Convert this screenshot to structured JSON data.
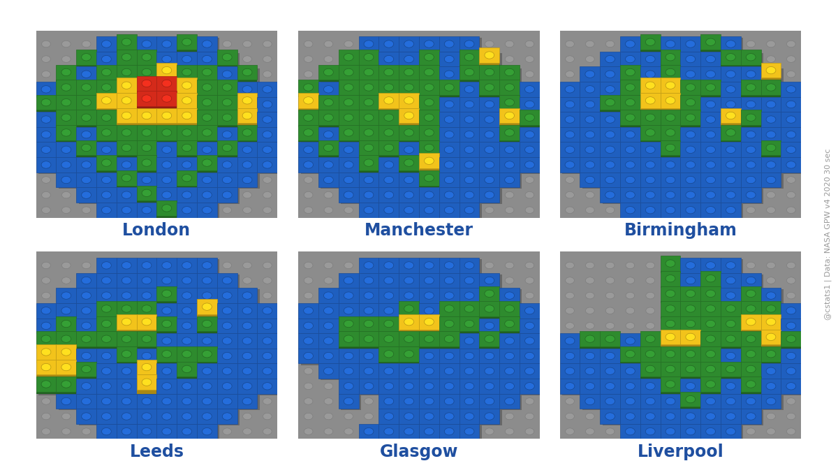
{
  "chart_data": [
    {
      "type": "heatmap",
      "title": "London",
      "tick_labels": false,
      "colors": [
        "#1f5fbf",
        "#2e8b2e",
        "#f2c31b",
        "#d42a1a"
      ],
      "cells": [
        [
          null,
          null,
          null,
          0,
          1,
          0,
          0,
          1,
          0,
          null,
          null,
          null
        ],
        [
          null,
          null,
          1,
          0,
          1,
          1,
          0,
          0,
          0,
          1,
          null,
          null
        ],
        [
          null,
          1,
          0,
          1,
          1,
          1,
          2,
          1,
          1,
          0,
          1,
          null
        ],
        [
          0,
          1,
          1,
          1,
          2,
          3,
          3,
          2,
          1,
          1,
          0,
          0
        ],
        [
          1,
          1,
          1,
          2,
          2,
          3,
          3,
          2,
          1,
          1,
          2,
          0
        ],
        [
          0,
          1,
          1,
          1,
          2,
          2,
          2,
          2,
          1,
          1,
          2,
          0
        ],
        [
          0,
          1,
          0,
          1,
          1,
          1,
          1,
          1,
          1,
          0,
          1,
          0
        ],
        [
          0,
          0,
          1,
          0,
          1,
          1,
          0,
          1,
          0,
          1,
          0,
          0
        ],
        [
          0,
          0,
          0,
          1,
          0,
          1,
          0,
          0,
          1,
          0,
          0,
          0
        ],
        [
          null,
          0,
          0,
          0,
          1,
          0,
          0,
          1,
          0,
          0,
          0,
          null
        ],
        [
          null,
          null,
          0,
          0,
          0,
          1,
          0,
          0,
          0,
          0,
          null,
          null
        ],
        [
          null,
          null,
          null,
          0,
          0,
          0,
          1,
          0,
          0,
          null,
          null,
          null
        ]
      ]
    },
    {
      "type": "heatmap",
      "title": "Manchester",
      "tick_labels": false,
      "colors": [
        "#1f5fbf",
        "#2e8b2e",
        "#f2c31b",
        "#d42a1a"
      ],
      "cells": [
        [
          null,
          null,
          null,
          0,
          0,
          0,
          0,
          0,
          0,
          null,
          null,
          null
        ],
        [
          null,
          null,
          1,
          1,
          0,
          0,
          1,
          0,
          1,
          2,
          null,
          null
        ],
        [
          null,
          1,
          1,
          1,
          1,
          1,
          1,
          0,
          1,
          1,
          1,
          null
        ],
        [
          1,
          0,
          1,
          1,
          1,
          1,
          1,
          1,
          0,
          1,
          1,
          0
        ],
        [
          2,
          1,
          1,
          1,
          2,
          2,
          1,
          0,
          0,
          0,
          1,
          0
        ],
        [
          1,
          1,
          1,
          1,
          1,
          2,
          1,
          0,
          0,
          0,
          2,
          1
        ],
        [
          1,
          0,
          1,
          1,
          1,
          1,
          1,
          0,
          0,
          0,
          1,
          0
        ],
        [
          0,
          1,
          0,
          1,
          1,
          0,
          1,
          0,
          0,
          0,
          0,
          0
        ],
        [
          0,
          0,
          0,
          1,
          0,
          1,
          2,
          0,
          0,
          0,
          0,
          0
        ],
        [
          null,
          0,
          0,
          0,
          0,
          0,
          1,
          0,
          0,
          0,
          0,
          null
        ],
        [
          null,
          null,
          0,
          0,
          0,
          0,
          0,
          0,
          0,
          0,
          null,
          null
        ],
        [
          null,
          null,
          null,
          0,
          0,
          0,
          0,
          0,
          0,
          null,
          null,
          null
        ]
      ]
    },
    {
      "type": "heatmap",
      "title": "Birmingham",
      "tick_labels": false,
      "colors": [
        "#1f5fbf",
        "#2e8b2e",
        "#f2c31b",
        "#d42a1a"
      ],
      "cells": [
        [
          null,
          null,
          null,
          0,
          1,
          0,
          0,
          1,
          0,
          null,
          null,
          null
        ],
        [
          null,
          null,
          0,
          0,
          0,
          1,
          0,
          0,
          1,
          1,
          null,
          null
        ],
        [
          null,
          0,
          0,
          1,
          0,
          1,
          0,
          0,
          0,
          0,
          2,
          null
        ],
        [
          0,
          0,
          0,
          1,
          2,
          2,
          1,
          1,
          0,
          1,
          1,
          0
        ],
        [
          0,
          0,
          1,
          1,
          2,
          2,
          1,
          0,
          0,
          0,
          0,
          0
        ],
        [
          0,
          0,
          0,
          1,
          1,
          1,
          1,
          0,
          2,
          1,
          0,
          0
        ],
        [
          0,
          0,
          0,
          0,
          1,
          1,
          0,
          0,
          1,
          0,
          0,
          0
        ],
        [
          0,
          0,
          0,
          0,
          0,
          1,
          0,
          0,
          0,
          0,
          1,
          0
        ],
        [
          0,
          0,
          0,
          0,
          0,
          0,
          0,
          0,
          0,
          0,
          0,
          0
        ],
        [
          null,
          0,
          0,
          0,
          0,
          0,
          0,
          0,
          0,
          0,
          0,
          null
        ],
        [
          null,
          null,
          0,
          0,
          0,
          0,
          0,
          0,
          0,
          0,
          null,
          null
        ],
        [
          null,
          null,
          null,
          0,
          0,
          0,
          0,
          0,
          0,
          null,
          null,
          null
        ]
      ]
    },
    {
      "type": "heatmap",
      "title": "Leeds",
      "tick_labels": false,
      "colors": [
        "#1f5fbf",
        "#2e8b2e",
        "#f2c31b",
        "#d42a1a"
      ],
      "cells": [
        [
          null,
          null,
          null,
          0,
          0,
          0,
          0,
          0,
          0,
          null,
          null,
          null
        ],
        [
          null,
          null,
          0,
          0,
          0,
          0,
          0,
          0,
          0,
          0,
          null,
          null
        ],
        [
          null,
          0,
          0,
          0,
          0,
          0,
          1,
          0,
          0,
          0,
          0,
          null
        ],
        [
          0,
          0,
          0,
          1,
          1,
          1,
          0,
          0,
          2,
          0,
          0,
          0
        ],
        [
          0,
          1,
          0,
          1,
          2,
          2,
          1,
          0,
          1,
          0,
          0,
          0
        ],
        [
          1,
          1,
          1,
          1,
          1,
          1,
          0,
          0,
          0,
          0,
          0,
          0
        ],
        [
          2,
          2,
          0,
          0,
          1,
          0,
          1,
          1,
          1,
          0,
          0,
          0
        ],
        [
          2,
          2,
          1,
          0,
          0,
          2,
          0,
          1,
          0,
          0,
          0,
          0
        ],
        [
          1,
          1,
          0,
          0,
          0,
          2,
          0,
          0,
          0,
          0,
          0,
          0
        ],
        [
          null,
          0,
          0,
          0,
          0,
          0,
          0,
          0,
          0,
          0,
          0,
          null
        ],
        [
          null,
          null,
          0,
          0,
          0,
          0,
          0,
          0,
          0,
          0,
          null,
          null
        ],
        [
          null,
          null,
          null,
          0,
          0,
          0,
          0,
          0,
          0,
          null,
          null,
          null
        ]
      ]
    },
    {
      "type": "heatmap",
      "title": "Glasgow",
      "tick_labels": false,
      "colors": [
        "#1f5fbf",
        "#2e8b2e",
        "#f2c31b",
        "#d42a1a"
      ],
      "cells": [
        [
          null,
          null,
          null,
          0,
          0,
          0,
          0,
          0,
          0,
          null,
          null,
          null
        ],
        [
          null,
          null,
          0,
          0,
          0,
          0,
          0,
          0,
          0,
          0,
          null,
          null
        ],
        [
          null,
          0,
          0,
          0,
          0,
          0,
          0,
          0,
          0,
          1,
          0,
          null
        ],
        [
          0,
          0,
          0,
          0,
          0,
          1,
          0,
          1,
          1,
          1,
          1,
          0
        ],
        [
          0,
          0,
          1,
          1,
          1,
          2,
          2,
          1,
          1,
          0,
          1,
          0
        ],
        [
          0,
          0,
          1,
          1,
          1,
          1,
          1,
          1,
          0,
          1,
          0,
          0
        ],
        [
          0,
          0,
          0,
          0,
          1,
          1,
          0,
          0,
          0,
          0,
          0,
          0
        ],
        [
          null,
          0,
          0,
          0,
          0,
          0,
          0,
          0,
          0,
          0,
          0,
          0
        ],
        [
          null,
          null,
          0,
          0,
          0,
          0,
          0,
          0,
          0,
          0,
          0,
          0
        ],
        [
          null,
          null,
          0,
          null,
          0,
          0,
          0,
          0,
          0,
          0,
          0,
          null
        ],
        [
          null,
          null,
          null,
          null,
          0,
          0,
          0,
          0,
          0,
          0,
          null,
          null
        ],
        [
          null,
          null,
          null,
          0,
          0,
          0,
          0,
          0,
          0,
          null,
          null,
          null
        ]
      ]
    },
    {
      "type": "heatmap",
      "title": "Liverpool",
      "tick_labels": false,
      "colors": [
        "#1f5fbf",
        "#2e8b2e",
        "#f2c31b",
        "#d42a1a"
      ],
      "cells": [
        [
          null,
          null,
          null,
          null,
          null,
          1,
          0,
          0,
          0,
          null,
          null,
          null
        ],
        [
          null,
          null,
          null,
          null,
          null,
          1,
          0,
          1,
          0,
          0,
          null,
          null
        ],
        [
          null,
          null,
          null,
          null,
          null,
          1,
          1,
          1,
          0,
          1,
          0,
          null
        ],
        [
          null,
          null,
          null,
          null,
          null,
          1,
          1,
          1,
          1,
          1,
          1,
          0
        ],
        [
          null,
          null,
          null,
          null,
          null,
          1,
          1,
          1,
          1,
          2,
          2,
          0
        ],
        [
          0,
          1,
          1,
          0,
          1,
          2,
          2,
          1,
          1,
          1,
          2,
          1
        ],
        [
          0,
          0,
          0,
          1,
          1,
          1,
          1,
          1,
          0,
          1,
          1,
          0
        ],
        [
          0,
          0,
          0,
          0,
          1,
          1,
          1,
          1,
          1,
          1,
          0,
          0
        ],
        [
          0,
          0,
          0,
          0,
          0,
          1,
          0,
          1,
          0,
          1,
          0,
          0
        ],
        [
          null,
          0,
          0,
          0,
          0,
          0,
          1,
          0,
          0,
          0,
          0,
          null
        ],
        [
          null,
          null,
          0,
          0,
          0,
          0,
          0,
          0,
          0,
          0,
          null,
          null
        ],
        [
          null,
          null,
          null,
          0,
          0,
          0,
          0,
          0,
          0,
          null,
          null,
          null
        ]
      ]
    }
  ],
  "source": "@cstats1 | Data: NASA GPW v4 2020 30 sec"
}
